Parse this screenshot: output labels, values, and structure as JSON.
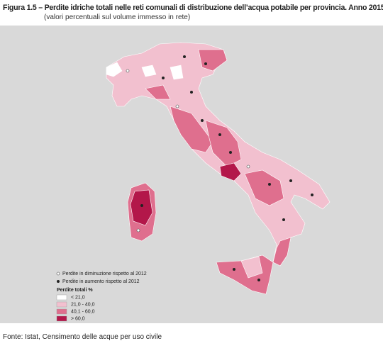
{
  "header": {
    "title": "Figura 1.5 – Perdite idriche totali nelle reti comunali di distribuzione dell’acqua potabile per provincia. Anno 2015",
    "subtitle": "(valori percentuali sul volume immesso in rete)"
  },
  "legend": {
    "markers": [
      "Perdite in diminuzione rispetto al 2012",
      "Perdite in aumento rispetto al 2012"
    ],
    "title": "Perdite totali %",
    "classes": [
      {
        "label": "< 21,0",
        "color": "#ffffff"
      },
      {
        "label": "21,0 - 40,0",
        "color": "#f2c0cf"
      },
      {
        "label": "40,1 - 60,0",
        "color": "#df6f8e"
      },
      {
        "label": "> 60,0",
        "color": "#b3174a"
      }
    ]
  },
  "source": "Fonte: Istat, Censimento delle acque per uso civile"
}
